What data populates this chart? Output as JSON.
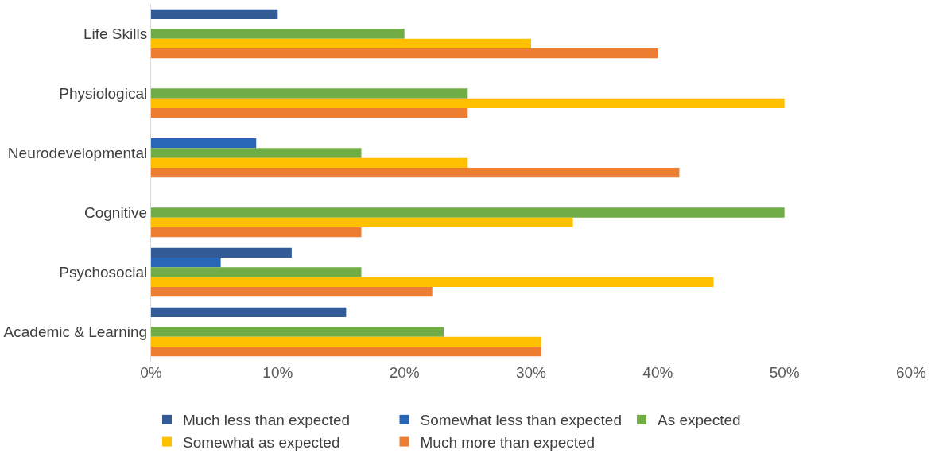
{
  "chart_data": {
    "type": "bar",
    "orientation": "horizontal",
    "categories": [
      "Life Skills",
      "Physiological",
      "Neurodevelopmental",
      "Cognitive",
      "Psychosocial",
      "Academic & Learning"
    ],
    "series": [
      {
        "name": "Much less than expected",
        "color": "#335b96",
        "values": [
          10,
          null,
          null,
          null,
          11.1,
          15.4
        ]
      },
      {
        "name": "Somewhat less than expected",
        "color": "#2866b8",
        "values": [
          null,
          null,
          8.3,
          null,
          5.5,
          null
        ]
      },
      {
        "name": "As expected",
        "color": "#70ad47",
        "values": [
          20,
          25,
          16.6,
          50,
          16.6,
          23.1
        ]
      },
      {
        "name": "Somewhat as expected",
        "color": "#ffc000",
        "values": [
          30,
          50,
          25,
          33.3,
          44.4,
          30.8
        ]
      },
      {
        "name": "Much more than expected",
        "color": "#ed7d31",
        "values": [
          40,
          25,
          41.7,
          16.6,
          22.2,
          30.8
        ]
      }
    ],
    "xlim": [
      0,
      60
    ],
    "xticks": [
      {
        "value": 0,
        "label": "0%"
      },
      {
        "value": 10,
        "label": "10%"
      },
      {
        "value": 20,
        "label": "20%"
      },
      {
        "value": 30,
        "label": "30%"
      },
      {
        "value": 40,
        "label": "40%"
      },
      {
        "value": 50,
        "label": "50%"
      },
      {
        "value": 60,
        "label": "60%"
      }
    ],
    "legend": "bottom"
  }
}
